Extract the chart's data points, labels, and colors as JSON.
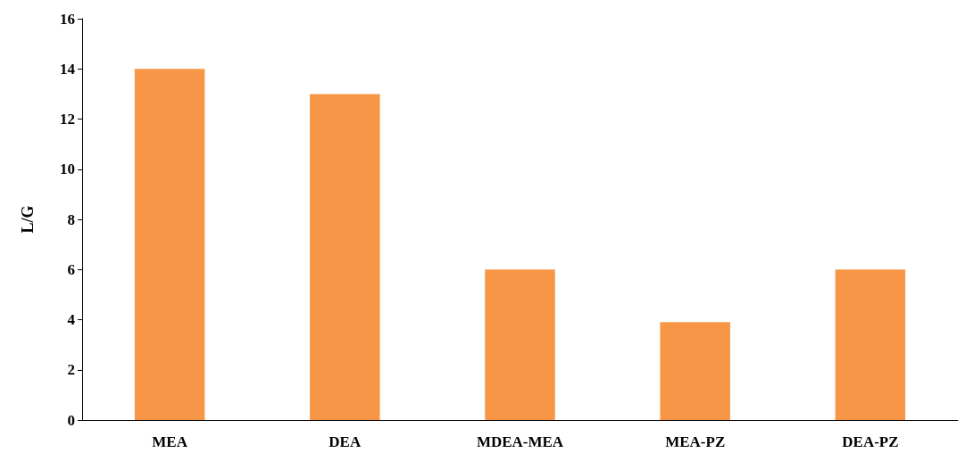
{
  "chart_data": {
    "type": "bar",
    "ylabel": "L/G",
    "categories": [
      "MEA",
      "DEA",
      "MDEA-MEA",
      "MEA-PZ",
      "DEA-PZ"
    ],
    "values": [
      14,
      13,
      6,
      3.9,
      6
    ],
    "color": "#f79646",
    "ylim": [
      0,
      16
    ],
    "yticks": [
      0,
      2,
      4,
      6,
      8,
      10,
      12,
      14,
      16
    ],
    "grid": false
  }
}
